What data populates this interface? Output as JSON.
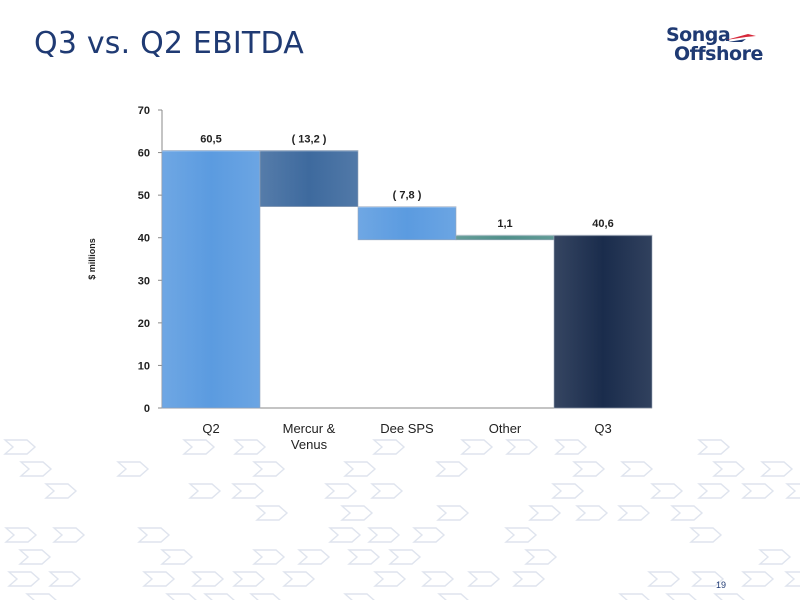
{
  "slide": {
    "title": "Q3 vs. Q2 EBITDA",
    "logo_line1": "Songa",
    "logo_line2": "Offshore",
    "page_number": "19"
  },
  "colors": {
    "title": "#1f3a73",
    "q2": "#5b9be0",
    "mercur_venus": "#3e6a9e",
    "dee_sps": "#5b9be0",
    "other": "#4f8f8a",
    "q3": "#1a2c4c",
    "logo_accent": "#d6283a",
    "pattern": "#dfe4ee"
  },
  "chart_data": {
    "type": "bar",
    "subtype": "waterfall",
    "categories": [
      "Q2",
      "Mercur & Venus",
      "Dee SPS",
      "Other",
      "Q3"
    ],
    "category_lines": [
      [
        "Q2"
      ],
      [
        "Mercur &",
        "Venus"
      ],
      [
        "Dee SPS"
      ],
      [
        "Other"
      ],
      [
        "Q3"
      ]
    ],
    "values": [
      60.5,
      -13.2,
      -7.8,
      1.1,
      40.6
    ],
    "data_labels": [
      "60,5",
      "( 13,2 )",
      "( 7,8 )",
      "1,1",
      "40,6"
    ],
    "bar_kinds": [
      "total",
      "delta",
      "delta",
      "delta",
      "total"
    ],
    "ylabel": "$ millions",
    "ylim": [
      0,
      70
    ],
    "yticks": [
      0,
      10,
      20,
      30,
      40,
      50,
      60,
      70
    ],
    "grid": false,
    "legend": "none"
  }
}
